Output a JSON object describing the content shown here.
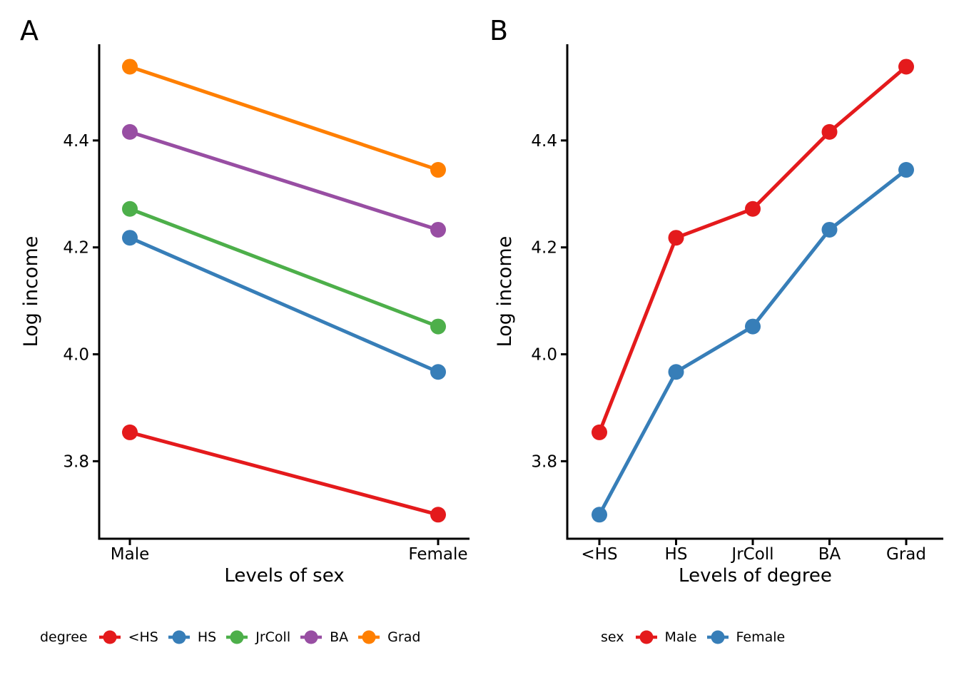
{
  "figure": {
    "background": "#ffffff",
    "text_color": "#000000",
    "panel_letters": [
      "A",
      "B"
    ]
  },
  "colors": {
    "red": "#E41A1C",
    "blue": "#377EB8",
    "green": "#4DAF4A",
    "purple": "#984EA3",
    "orange": "#FF7F00",
    "axis": "#000000"
  },
  "chart_data": [
    {
      "panel_label": "A",
      "type": "line",
      "x_categories": [
        "Male",
        "Female"
      ],
      "series": [
        {
          "name": "<HS",
          "color": "#E41A1C",
          "values": [
            3.854,
            3.7
          ]
        },
        {
          "name": "HS",
          "color": "#377EB8",
          "values": [
            4.218,
            3.967
          ]
        },
        {
          "name": "JrColl",
          "color": "#4DAF4A",
          "values": [
            4.272,
            4.052
          ]
        },
        {
          "name": "BA",
          "color": "#984EA3",
          "values": [
            4.416,
            4.233
          ]
        },
        {
          "name": "Grad",
          "color": "#FF7F00",
          "values": [
            4.538,
            4.345
          ]
        }
      ],
      "xlabel": "Levels of sex",
      "ylabel": "Log income",
      "yticks": [
        3.8,
        4.0,
        4.2,
        4.4
      ],
      "ytick_labels": [
        "3.8",
        "4.0",
        "4.2",
        "4.4"
      ],
      "ylim": [
        3.655,
        4.58
      ],
      "grid": false,
      "legend_title": "degree",
      "legend_position": "bottom",
      "legend_entries": [
        "<HS",
        "HS",
        "JrColl",
        "BA",
        "Grad"
      ]
    },
    {
      "panel_label": "B",
      "type": "line",
      "x_categories": [
        "<HS",
        "HS",
        "JrColl",
        "BA",
        "Grad"
      ],
      "series": [
        {
          "name": "Male",
          "color": "#E41A1C",
          "values": [
            3.854,
            4.218,
            4.272,
            4.416,
            4.538
          ]
        },
        {
          "name": "Female",
          "color": "#377EB8",
          "values": [
            3.7,
            3.967,
            4.052,
            4.233,
            4.345
          ]
        }
      ],
      "xlabel": "Levels of degree",
      "ylabel": "Log income",
      "yticks": [
        3.8,
        4.0,
        4.2,
        4.4
      ],
      "ytick_labels": [
        "3.8",
        "4.0",
        "4.2",
        "4.4"
      ],
      "ylim": [
        3.655,
        4.58
      ],
      "grid": false,
      "legend_title": "sex",
      "legend_position": "bottom",
      "legend_entries": [
        "Male",
        "Female"
      ]
    }
  ]
}
